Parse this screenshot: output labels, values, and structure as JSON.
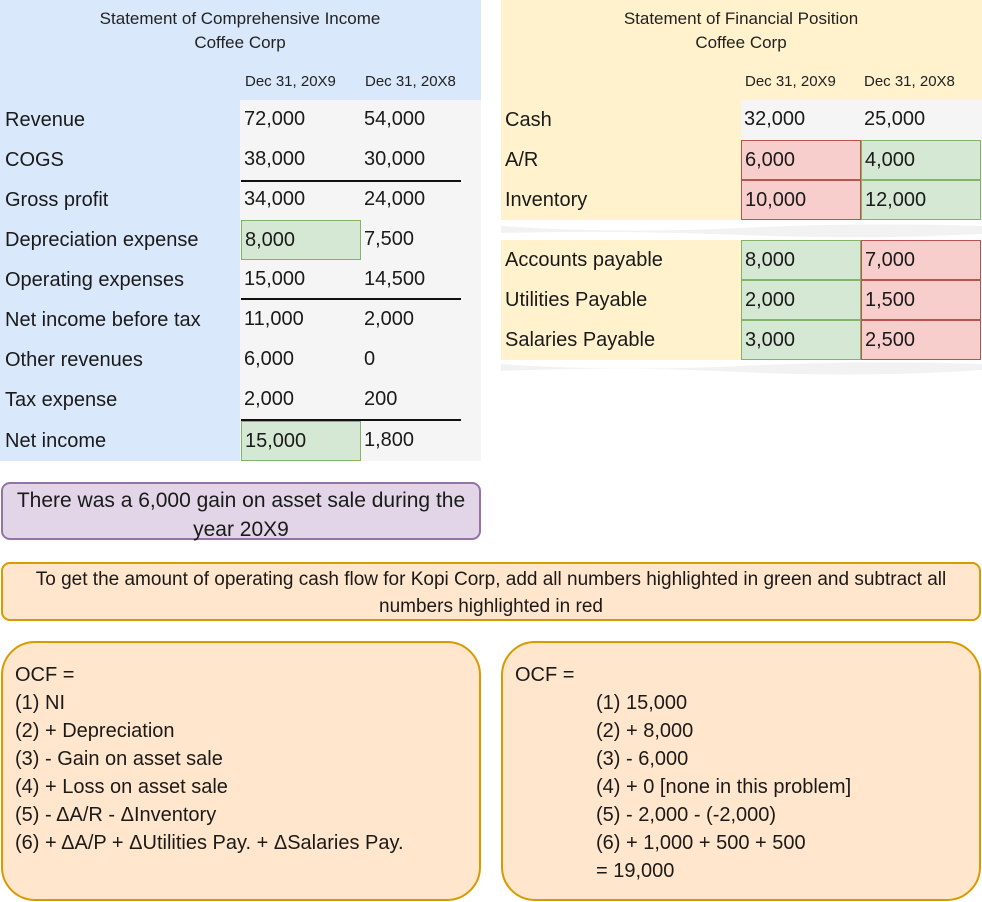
{
  "income_statement": {
    "title": "Statement of Comprehensive Income",
    "company": "Coffee Corp",
    "col1": "Dec 31, 20X9",
    "col2": "Dec 31, 20X8",
    "rows": [
      {
        "label": "Revenue",
        "v1": "72,000",
        "v2": "54,000"
      },
      {
        "label": "COGS",
        "v1": "38,000",
        "v2": "30,000"
      },
      {
        "label": "Gross profit",
        "v1": "34,000",
        "v2": "24,000"
      },
      {
        "label": "Depreciation expense",
        "v1": "8,000",
        "v2": "7,500"
      },
      {
        "label": "Operating expenses",
        "v1": "15,000",
        "v2": "14,500"
      },
      {
        "label": "Net income before tax",
        "v1": "11,000",
        "v2": "2,000"
      },
      {
        "label": "Other revenues",
        "v1": "6,000",
        "v2": "0"
      },
      {
        "label": "Tax expense",
        "v1": "2,000",
        "v2": "200"
      },
      {
        "label": "Net income",
        "v1": "15,000",
        "v2": "1,800"
      }
    ]
  },
  "financial_position": {
    "title": "Statement of Financial Position",
    "company": "Coffee Corp",
    "col1": "Dec 31, 20X9",
    "col2": "Dec 31, 20X8",
    "assets": [
      {
        "label": "Cash",
        "v1": "32,000",
        "v2": "25,000"
      },
      {
        "label": "A/R",
        "v1": "6,000",
        "v2": "4,000"
      },
      {
        "label": "Inventory",
        "v1": "10,000",
        "v2": "12,000"
      }
    ],
    "liabilities": [
      {
        "label": "Accounts payable",
        "v1": "8,000",
        "v2": "7,000"
      },
      {
        "label": "Utilities Payable",
        "v1": "2,000",
        "v2": "1,500"
      },
      {
        "label": "Salaries Payable",
        "v1": "3,000",
        "v2": "2,500"
      }
    ]
  },
  "gain_note": "There was a 6,000 gain on asset sale during the year 20X9",
  "instruction_note": "To get the amount of operating cash flow for Kopi Corp, add all numbers highlighted in green and subtract all numbers highlighted in red",
  "formula_box": {
    "heading": "OCF =",
    "lines": [
      "(1) NI",
      "(2) + Depreciation",
      "(3) - Gain on asset sale",
      "(4) + Loss on asset sale",
      "(5) - ΔA/R - ΔInventory",
      "(6) + ΔA/P + ΔUtilities Pay. + ΔSalaries Pay."
    ]
  },
  "solution_box": {
    "heading": "OCF =",
    "lines": [
      "(1) 15,000",
      "(2) + 8,000",
      "(3) - 6,000",
      "(4) + 0 [none in this problem]",
      "(5) - 2,000 - (-2,000)",
      "(6) + 1,000 + 500 + 500",
      "= 19,000"
    ]
  },
  "colors": {
    "blue_panel": "#dae8fc",
    "gray_panel": "#f5f5f5",
    "yellow_panel": "#fff2cc",
    "green_highlight": "#d5e8d4",
    "red_highlight": "#f8cecc",
    "purple_note": "#e1d5e7",
    "orange_note": "#ffe6cc"
  }
}
